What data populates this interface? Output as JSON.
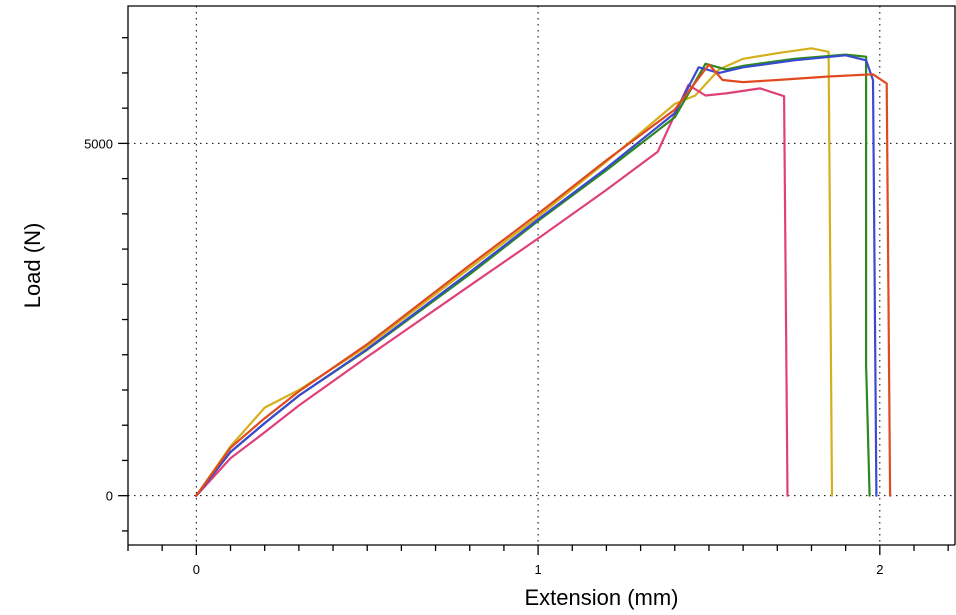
{
  "chart_data": {
    "type": "line",
    "title": "",
    "xlabel": "Extension (mm)",
    "ylabel": "Load (N)",
    "xlim": [
      -0.2,
      2.22
    ],
    "ylim": [
      -700,
      6950
    ],
    "x_ticks_labeled": [
      0,
      1,
      2
    ],
    "x_tick_labels": [
      "0",
      "1",
      "2"
    ],
    "y_ticks_labeled": [
      0,
      5000
    ],
    "y_tick_labels": [
      "0",
      "5000"
    ],
    "x_minor_step": 0.1,
    "y_minor_step": 500,
    "grid": true,
    "legend": "none",
    "series": [
      {
        "color": "#d4b01c",
        "points": [
          [
            0,
            0
          ],
          [
            0.1,
            700
          ],
          [
            0.2,
            1250
          ],
          [
            0.3,
            1500
          ],
          [
            0.5,
            2120
          ],
          [
            0.8,
            3230
          ],
          [
            1.0,
            3960
          ],
          [
            1.2,
            4740
          ],
          [
            1.4,
            5560
          ],
          [
            1.46,
            5680
          ],
          [
            1.53,
            6050
          ],
          [
            1.6,
            6200
          ],
          [
            1.7,
            6280
          ],
          [
            1.8,
            6350
          ],
          [
            1.85,
            6300
          ],
          [
            1.86,
            0
          ]
        ]
      },
      {
        "color": "#e0407a",
        "points": [
          [
            0,
            0
          ],
          [
            0.1,
            530
          ],
          [
            0.2,
            900
          ],
          [
            0.3,
            1280
          ],
          [
            0.5,
            1970
          ],
          [
            0.8,
            2980
          ],
          [
            1.0,
            3650
          ],
          [
            1.2,
            4340
          ],
          [
            1.35,
            4880
          ],
          [
            1.44,
            5830
          ],
          [
            1.49,
            5680
          ],
          [
            1.55,
            5710
          ],
          [
            1.65,
            5780
          ],
          [
            1.72,
            5670
          ],
          [
            1.73,
            0
          ]
        ]
      },
      {
        "color": "#2a8a1e",
        "points": [
          [
            0,
            0
          ],
          [
            0.1,
            620
          ],
          [
            0.2,
            1030
          ],
          [
            0.3,
            1420
          ],
          [
            0.5,
            2070
          ],
          [
            0.8,
            3140
          ],
          [
            1.0,
            3900
          ],
          [
            1.2,
            4620
          ],
          [
            1.4,
            5370
          ],
          [
            1.49,
            6130
          ],
          [
            1.55,
            6050
          ],
          [
            1.6,
            6100
          ],
          [
            1.75,
            6200
          ],
          [
            1.9,
            6260
          ],
          [
            1.96,
            6230
          ],
          [
            1.96,
            1850
          ],
          [
            1.97,
            0
          ]
        ]
      },
      {
        "color": "#3a4ad0",
        "points": [
          [
            0,
            0
          ],
          [
            0.1,
            620
          ],
          [
            0.2,
            1030
          ],
          [
            0.3,
            1420
          ],
          [
            0.5,
            2080
          ],
          [
            0.8,
            3170
          ],
          [
            1.0,
            3920
          ],
          [
            1.2,
            4650
          ],
          [
            1.4,
            5430
          ],
          [
            1.47,
            6080
          ],
          [
            1.53,
            6000
          ],
          [
            1.6,
            6080
          ],
          [
            1.75,
            6180
          ],
          [
            1.9,
            6250
          ],
          [
            1.96,
            6180
          ],
          [
            1.98,
            5900
          ],
          [
            1.99,
            0
          ]
        ]
      },
      {
        "color": "#e04a1e",
        "points": [
          [
            0,
            0
          ],
          [
            0.1,
            680
          ],
          [
            0.2,
            1100
          ],
          [
            0.3,
            1480
          ],
          [
            0.5,
            2150
          ],
          [
            0.8,
            3270
          ],
          [
            1.0,
            4000
          ],
          [
            1.2,
            4760
          ],
          [
            1.4,
            5480
          ],
          [
            1.5,
            6120
          ],
          [
            1.54,
            5900
          ],
          [
            1.6,
            5870
          ],
          [
            1.7,
            5900
          ],
          [
            1.85,
            5950
          ],
          [
            1.98,
            5980
          ],
          [
            2.02,
            5850
          ],
          [
            2.03,
            0
          ]
        ]
      }
    ]
  }
}
